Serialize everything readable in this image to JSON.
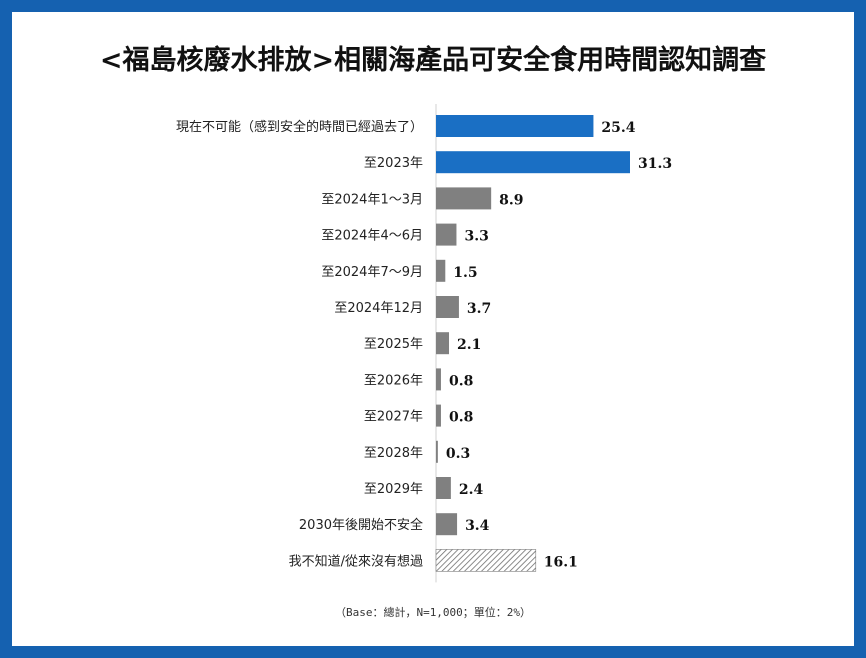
{
  "page": {
    "title": "<福島核廢水排放>相關海產品可安全食用時間認知調查",
    "footnote": "（Base：總計，N=1,000；單位：2%）"
  },
  "colors": {
    "frame": "#1561b0",
    "highlight": "#1a6fc4",
    "gray": "#808080",
    "hatch": "#7f7f7f"
  },
  "chart_data": {
    "type": "bar",
    "orientation": "horizontal",
    "categories": [
      "現在不可能（感到安全的時間已經過去了）",
      "至2023年",
      "至2024年1～3月",
      "至2024年4～6月",
      "至2024年7～9月",
      "至2024年12月",
      "至2025年",
      "至2026年",
      "至2027年",
      "至2028年",
      "至2029年",
      "2030年後開始不安全",
      "我不知道/從來沒有想過"
    ],
    "values": [
      25.4,
      31.3,
      8.9,
      3.3,
      1.5,
      3.7,
      2.1,
      0.8,
      0.8,
      0.3,
      2.4,
      3.4,
      16.1
    ],
    "value_labels": [
      "25.4",
      "31.3",
      "8.9",
      "3.3",
      "1.5",
      "3.7",
      "2.1",
      "0.8",
      "0.8",
      "0.3",
      "2.4",
      "3.4",
      "16.1"
    ],
    "bar_styles": [
      "highlight",
      "highlight",
      "gray",
      "gray",
      "gray",
      "gray",
      "gray",
      "gray",
      "gray",
      "gray",
      "gray",
      "gray",
      "hatch"
    ],
    "xlim": [
      0,
      31.3
    ],
    "grid": false,
    "legend": "none"
  }
}
